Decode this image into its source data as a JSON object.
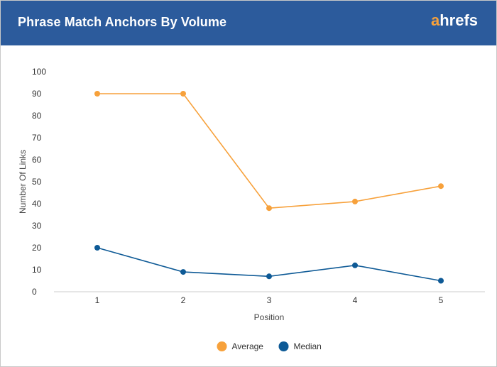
{
  "header": {
    "title": "Phrase Match Anchors By Volume",
    "logo_first": "a",
    "logo_rest": "hrefs"
  },
  "colors": {
    "header_bg": "#2c5b9c",
    "average": "#f7a13b",
    "median": "#0e5a96",
    "logo_accent": "#f7a13b"
  },
  "chart_data": {
    "type": "line",
    "title": "Phrase Match Anchors By Volume",
    "xlabel": "Position",
    "ylabel": "Number Of Links",
    "categories": [
      "1",
      "2",
      "3",
      "4",
      "5"
    ],
    "ylim": [
      0,
      100
    ],
    "yticks": [
      "0",
      "10",
      "20",
      "30",
      "40",
      "50",
      "60",
      "70",
      "80",
      "90",
      "100"
    ],
    "grid": false,
    "legend_position": "bottom",
    "series": [
      {
        "name": "Average",
        "color": "#f7a13b",
        "values": [
          90,
          90,
          38,
          41,
          48
        ]
      },
      {
        "name": "Median",
        "color": "#0e5a96",
        "values": [
          20,
          9,
          7,
          12,
          5
        ]
      }
    ]
  }
}
